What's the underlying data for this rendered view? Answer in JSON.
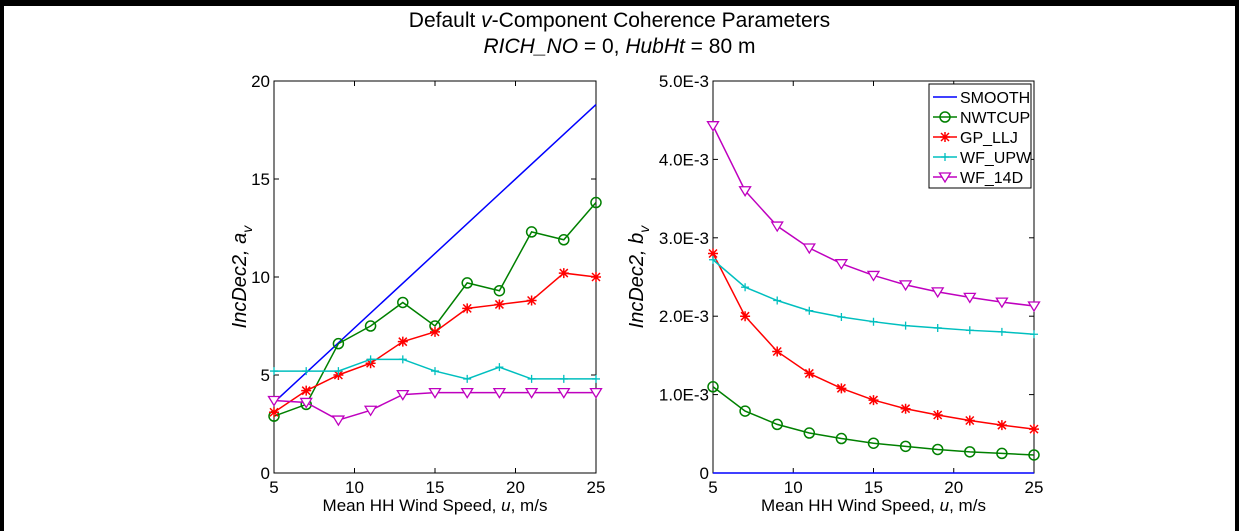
{
  "figure": {
    "title_parts": [
      {
        "text": "Default ",
        "italic": false
      },
      {
        "text": "v",
        "italic": true
      },
      {
        "text": "-Component Coherence Parameters",
        "italic": false
      }
    ],
    "subtitle_parts": [
      {
        "text": "RICH_NO",
        "italic": true
      },
      {
        "text": " = 0, ",
        "italic": false
      },
      {
        "text": "HubHt",
        "italic": true
      },
      {
        "text": " = 80 m",
        "italic": false
      }
    ]
  },
  "colors": {
    "SMOOTH": "#0000ff",
    "NWTCUP": "#008000",
    "GP_LLJ": "#ff0000",
    "WF_UPW": "#00bfbf",
    "WF_14D": "#bf00bf"
  },
  "chart_data": [
    {
      "type": "line",
      "xlabel_parts": [
        {
          "text": "Mean HH Wind Speed, ",
          "italic": false
        },
        {
          "text": "u",
          "italic": true
        },
        {
          "text": ", m/s",
          "italic": false
        }
      ],
      "ylabel_parts": [
        {
          "text": "IncDec2, a",
          "italic": true
        },
        {
          "text": "v",
          "italic": true,
          "sub": true
        }
      ],
      "xlim": [
        5,
        25
      ],
      "ylim": [
        0,
        20
      ],
      "xticks": [
        5,
        10,
        15,
        20,
        25
      ],
      "xtick_labels": [
        "5",
        "10",
        "15",
        "20",
        "25"
      ],
      "yticks": [
        0,
        5,
        10,
        15,
        20
      ],
      "ytick_labels": [
        "0",
        "5",
        "10",
        "15",
        "20"
      ],
      "grid": false,
      "series": [
        {
          "name": "SMOOTH",
          "marker": "none",
          "x": [
            5,
            25
          ],
          "y": [
            3.6,
            18.8
          ]
        },
        {
          "name": "NWTCUP",
          "marker": "circle",
          "x": [
            5,
            7,
            9,
            11,
            13,
            15,
            17,
            19,
            21,
            23,
            25
          ],
          "y": [
            2.9,
            3.5,
            6.6,
            7.5,
            8.7,
            7.5,
            9.7,
            9.3,
            12.3,
            11.9,
            13.8
          ]
        },
        {
          "name": "GP_LLJ",
          "marker": "asterisk",
          "x": [
            5,
            7,
            9,
            11,
            13,
            15,
            17,
            19,
            21,
            23,
            25
          ],
          "y": [
            3.1,
            4.2,
            5.0,
            5.6,
            6.7,
            7.2,
            8.4,
            8.6,
            8.8,
            10.2,
            10.0
          ]
        },
        {
          "name": "WF_UPW",
          "marker": "plus",
          "x": [
            5,
            7,
            9,
            11,
            13,
            15,
            17,
            19,
            21,
            23,
            25
          ],
          "y": [
            5.2,
            5.2,
            5.2,
            5.8,
            5.8,
            5.2,
            4.8,
            5.4,
            4.8,
            4.8,
            4.8
          ]
        },
        {
          "name": "WF_14D",
          "marker": "triangle-down",
          "x": [
            5,
            7,
            9,
            11,
            13,
            15,
            17,
            19,
            21,
            23,
            25
          ],
          "y": [
            3.7,
            3.6,
            2.7,
            3.2,
            4.0,
            4.1,
            4.1,
            4.1,
            4.1,
            4.1,
            4.1
          ]
        }
      ]
    },
    {
      "type": "line",
      "xlabel_parts": [
        {
          "text": "Mean HH Wind Speed, ",
          "italic": false
        },
        {
          "text": "u",
          "italic": true
        },
        {
          "text": ", m/s",
          "italic": false
        }
      ],
      "ylabel_parts": [
        {
          "text": "IncDec2, b",
          "italic": true
        },
        {
          "text": "v",
          "italic": true,
          "sub": true
        }
      ],
      "xlim": [
        5,
        25
      ],
      "ylim": [
        0,
        0.005
      ],
      "xticks": [
        5,
        10,
        15,
        20,
        25
      ],
      "xtick_labels": [
        "5",
        "10",
        "15",
        "20",
        "25"
      ],
      "yticks": [
        0,
        0.001,
        0.002,
        0.003,
        0.004,
        0.005
      ],
      "ytick_labels": [
        "0",
        "1.0E-3",
        "2.0E-3",
        "3.0E-3",
        "4.0E-3",
        "5.0E-3"
      ],
      "grid": false,
      "legend": {
        "position": "top-right",
        "entries": [
          "SMOOTH",
          "NWTCUP",
          "GP_LLJ",
          "WF_UPW",
          "WF_14D"
        ]
      },
      "series": [
        {
          "name": "SMOOTH",
          "marker": "none",
          "x": [
            5,
            25
          ],
          "y": [
            0,
            0
          ]
        },
        {
          "name": "NWTCUP",
          "marker": "circle",
          "x": [
            5,
            7,
            9,
            11,
            13,
            15,
            17,
            19,
            21,
            23,
            25
          ],
          "y": [
            0.0011,
            0.00079,
            0.00062,
            0.00051,
            0.00044,
            0.00038,
            0.00034,
            0.0003,
            0.00027,
            0.00025,
            0.00023
          ]
        },
        {
          "name": "GP_LLJ",
          "marker": "asterisk",
          "x": [
            5,
            7,
            9,
            11,
            13,
            15,
            17,
            19,
            21,
            23,
            25
          ],
          "y": [
            0.0028,
            0.002,
            0.00155,
            0.00127,
            0.00108,
            0.00093,
            0.00082,
            0.00074,
            0.00067,
            0.00061,
            0.00056
          ]
        },
        {
          "name": "WF_UPW",
          "marker": "plus",
          "x": [
            5,
            7,
            9,
            11,
            13,
            15,
            17,
            19,
            21,
            23,
            25
          ],
          "y": [
            0.00272,
            0.00237,
            0.0022,
            0.00207,
            0.00199,
            0.00193,
            0.00188,
            0.00185,
            0.00182,
            0.0018,
            0.00177
          ]
        },
        {
          "name": "WF_14D",
          "marker": "triangle-down",
          "x": [
            5,
            7,
            9,
            11,
            13,
            15,
            17,
            19,
            21,
            23,
            25
          ],
          "y": [
            0.00443,
            0.0036,
            0.00315,
            0.00287,
            0.00267,
            0.00252,
            0.0024,
            0.00231,
            0.00224,
            0.00218,
            0.00213
          ]
        }
      ]
    }
  ]
}
